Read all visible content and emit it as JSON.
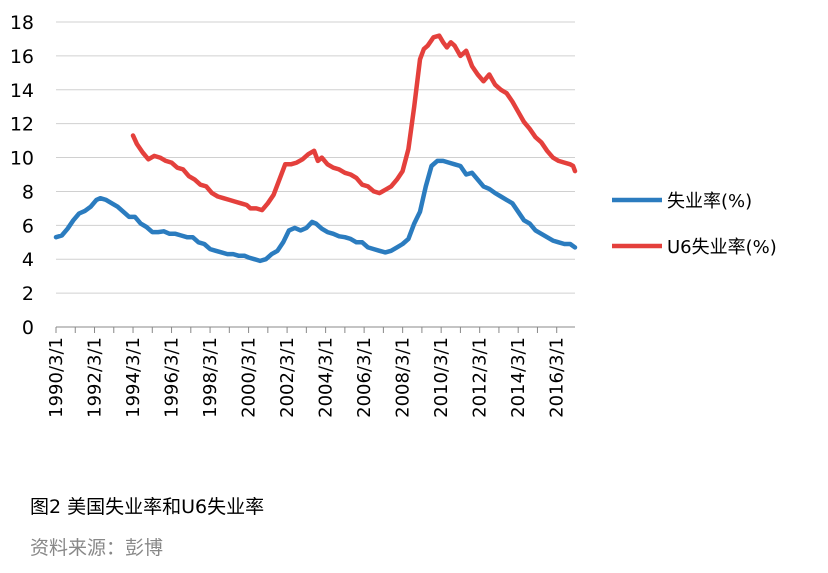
{
  "chart_data": {
    "type": "line",
    "xlabel": "",
    "ylabel": "",
    "ylim": [
      0,
      18
    ],
    "yticks": [
      0,
      2,
      4,
      6,
      8,
      10,
      12,
      14,
      16,
      18
    ],
    "xticks": [
      "1990/3/1",
      "1992/3/1",
      "1994/3/1",
      "1996/3/1",
      "1998/3/1",
      "2000/3/1",
      "2002/3/1",
      "2004/3/1",
      "2006/3/1",
      "2008/3/1",
      "2010/3/1",
      "2012/3/1",
      "2014/3/1",
      "2016/3/1"
    ],
    "xlim": [
      1990.0,
      2016.95
    ],
    "legend_position": "right",
    "series": [
      {
        "name": "失业率(%)",
        "color": "#2b7cbf",
        "x": [
          1990.0,
          1990.3,
          1990.6,
          1990.9,
          1991.2,
          1991.5,
          1991.8,
          1992.1,
          1992.3,
          1992.6,
          1992.9,
          1993.2,
          1993.5,
          1993.8,
          1994.1,
          1994.4,
          1994.7,
          1995.0,
          1995.3,
          1995.6,
          1995.9,
          1996.2,
          1996.5,
          1996.8,
          1997.1,
          1997.4,
          1997.7,
          1998.0,
          1998.3,
          1998.6,
          1998.9,
          1999.2,
          1999.5,
          1999.8,
          2000.0,
          2000.3,
          2000.6,
          2000.9,
          2001.2,
          2001.5,
          2001.8,
          2002.1,
          2002.4,
          2002.7,
          2003.0,
          2003.3,
          2003.5,
          2003.8,
          2004.1,
          2004.4,
          2004.7,
          2005.0,
          2005.3,
          2005.6,
          2005.9,
          2006.2,
          2006.5,
          2006.8,
          2007.1,
          2007.4,
          2007.7,
          2008.0,
          2008.3,
          2008.6,
          2008.9,
          2009.2,
          2009.5,
          2009.8,
          2010.1,
          2010.4,
          2010.7,
          2011.0,
          2011.3,
          2011.6,
          2011.9,
          2012.2,
          2012.5,
          2012.8,
          2013.1,
          2013.4,
          2013.7,
          2014.0,
          2014.3,
          2014.6,
          2014.9,
          2015.2,
          2015.5,
          2015.8,
          2016.1,
          2016.4,
          2016.7,
          2016.95
        ],
        "values": [
          5.3,
          5.4,
          5.8,
          6.3,
          6.7,
          6.85,
          7.1,
          7.5,
          7.6,
          7.5,
          7.3,
          7.1,
          6.8,
          6.5,
          6.5,
          6.1,
          5.9,
          5.6,
          5.6,
          5.65,
          5.5,
          5.5,
          5.4,
          5.3,
          5.3,
          5.0,
          4.9,
          4.6,
          4.5,
          4.4,
          4.3,
          4.3,
          4.2,
          4.2,
          4.1,
          4.0,
          3.9,
          4.0,
          4.3,
          4.5,
          5.0,
          5.7,
          5.85,
          5.7,
          5.85,
          6.2,
          6.1,
          5.8,
          5.6,
          5.5,
          5.35,
          5.3,
          5.2,
          5.0,
          5.0,
          4.7,
          4.6,
          4.5,
          4.4,
          4.5,
          4.7,
          4.9,
          5.2,
          6.1,
          6.8,
          8.3,
          9.5,
          9.8,
          9.8,
          9.7,
          9.6,
          9.5,
          9.0,
          9.1,
          8.7,
          8.3,
          8.15,
          7.9,
          7.7,
          7.5,
          7.3,
          6.8,
          6.3,
          6.1,
          5.7,
          5.5,
          5.3,
          5.1,
          5.0,
          4.9,
          4.9,
          4.7
        ]
      },
      {
        "name": "U6失业率(%)",
        "color": "#e4403c",
        "x": [
          1994.0,
          1994.2,
          1994.5,
          1994.8,
          1995.1,
          1995.4,
          1995.7,
          1996.0,
          1996.3,
          1996.6,
          1996.9,
          1997.2,
          1997.5,
          1997.8,
          1998.1,
          1998.4,
          1998.7,
          1999.0,
          1999.3,
          1999.6,
          1999.9,
          2000.1,
          2000.4,
          2000.7,
          2001.0,
          2001.3,
          2001.6,
          2001.9,
          2002.2,
          2002.5,
          2002.8,
          2003.1,
          2003.4,
          2003.6,
          2003.8,
          2004.1,
          2004.4,
          2004.7,
          2005.0,
          2005.3,
          2005.6,
          2005.9,
          2006.2,
          2006.5,
          2006.8,
          2007.1,
          2007.4,
          2007.7,
          2008.0,
          2008.3,
          2008.6,
          2008.9,
          2009.1,
          2009.3,
          2009.6,
          2009.9,
          2010.1,
          2010.3,
          2010.5,
          2010.7,
          2011.0,
          2011.3,
          2011.6,
          2011.9,
          2012.2,
          2012.5,
          2012.8,
          2013.1,
          2013.4,
          2013.7,
          2014.0,
          2014.3,
          2014.6,
          2014.9,
          2015.2,
          2015.5,
          2015.8,
          2016.1,
          2016.4,
          2016.7,
          2016.85,
          2016.95
        ],
        "values": [
          11.3,
          10.8,
          10.3,
          9.9,
          10.1,
          10.0,
          9.8,
          9.7,
          9.4,
          9.3,
          8.9,
          8.7,
          8.4,
          8.3,
          7.9,
          7.7,
          7.6,
          7.5,
          7.4,
          7.3,
          7.2,
          7.0,
          7.0,
          6.9,
          7.3,
          7.8,
          8.7,
          9.6,
          9.6,
          9.7,
          9.9,
          10.2,
          10.4,
          9.8,
          10.0,
          9.6,
          9.4,
          9.3,
          9.1,
          9.0,
          8.8,
          8.4,
          8.3,
          8.0,
          7.9,
          8.1,
          8.3,
          8.7,
          9.2,
          10.5,
          13.0,
          15.8,
          16.4,
          16.6,
          17.1,
          17.2,
          16.8,
          16.5,
          16.8,
          16.6,
          16.0,
          16.3,
          15.4,
          14.9,
          14.5,
          14.9,
          14.3,
          14.0,
          13.8,
          13.3,
          12.7,
          12.1,
          11.7,
          11.2,
          10.9,
          10.4,
          10.0,
          9.8,
          9.7,
          9.6,
          9.5,
          9.2
        ]
      }
    ]
  },
  "caption": {
    "title": "图2  美国失业率和U6失业率",
    "source": "资料来源：彭博"
  }
}
